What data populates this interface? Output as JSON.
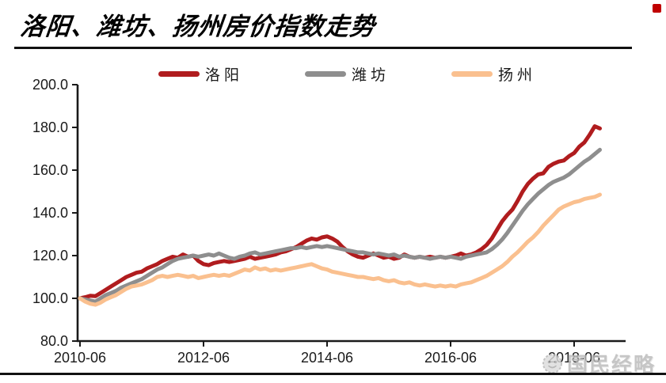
{
  "page": {
    "title": "洛阳、潍坊、扬州房价指数走势"
  },
  "watermark": {
    "text": "国民经略",
    "logo": "panda-face-icon"
  },
  "chart_data": {
    "type": "line",
    "title": "洛阳、潍坊、扬州房价指数走势",
    "xlabel": "",
    "ylabel": "",
    "ylim": [
      80,
      200
    ],
    "grid": false,
    "legend_position": "top",
    "axis_color": "#1a1a1a",
    "y_tick_labels": [
      "200.0",
      "180.0",
      "160.0",
      "140.0",
      "120.0",
      "100.0",
      "80.0"
    ],
    "x_tick_labels": [
      "2010-06",
      "2012-06",
      "2014-06",
      "2016-06",
      "2018-06"
    ],
    "x": [
      "2010-06",
      "2010-07",
      "2010-08",
      "2010-09",
      "2010-10",
      "2010-11",
      "2010-12",
      "2011-01",
      "2011-02",
      "2011-03",
      "2011-04",
      "2011-05",
      "2011-06",
      "2011-07",
      "2011-08",
      "2011-09",
      "2011-10",
      "2011-11",
      "2011-12",
      "2012-01",
      "2012-02",
      "2012-03",
      "2012-04",
      "2012-05",
      "2012-06",
      "2012-07",
      "2012-08",
      "2012-09",
      "2012-10",
      "2012-11",
      "2012-12",
      "2013-01",
      "2013-02",
      "2013-03",
      "2013-04",
      "2013-05",
      "2013-06",
      "2013-07",
      "2013-08",
      "2013-09",
      "2013-10",
      "2013-11",
      "2013-12",
      "2014-01",
      "2014-02",
      "2014-03",
      "2014-04",
      "2014-05",
      "2014-06",
      "2014-07",
      "2014-08",
      "2014-09",
      "2014-10",
      "2014-11",
      "2014-12",
      "2015-01",
      "2015-02",
      "2015-03",
      "2015-04",
      "2015-05",
      "2015-06",
      "2015-07",
      "2015-08",
      "2015-09",
      "2015-10",
      "2015-11",
      "2015-12",
      "2016-01",
      "2016-02",
      "2016-03",
      "2016-04",
      "2016-05",
      "2016-06",
      "2016-07",
      "2016-08",
      "2016-09",
      "2016-10",
      "2016-11",
      "2016-12",
      "2017-01",
      "2017-02",
      "2017-03",
      "2017-04",
      "2017-05",
      "2017-06",
      "2017-07",
      "2017-08",
      "2017-09",
      "2017-10",
      "2017-11",
      "2017-12",
      "2018-01",
      "2018-02",
      "2018-03",
      "2018-04",
      "2018-05",
      "2018-06",
      "2018-07",
      "2018-08",
      "2018-09",
      "2018-10",
      "2018-11"
    ],
    "series": [
      {
        "name": "洛阳",
        "color": "#b01c1e",
        "values": [
          100.0,
          100.5,
          101.2,
          101.0,
          102.5,
          104.0,
          105.5,
          107.0,
          108.5,
          110.0,
          111.0,
          112.0,
          112.5,
          114.0,
          115.0,
          116.0,
          117.5,
          118.5,
          119.5,
          119.0,
          120.5,
          119.5,
          120.0,
          117.5,
          116.0,
          115.5,
          116.5,
          117.0,
          117.5,
          117.0,
          117.5,
          118.0,
          118.5,
          119.5,
          118.5,
          119.0,
          119.5,
          120.0,
          120.5,
          121.5,
          122.0,
          123.0,
          124.0,
          125.5,
          127.0,
          128.0,
          127.5,
          128.5,
          129.0,
          128.0,
          126.5,
          124.0,
          122.0,
          120.5,
          119.5,
          119.0,
          120.0,
          121.0,
          120.0,
          119.0,
          119.5,
          118.5,
          119.0,
          120.5,
          119.5,
          119.0,
          119.5,
          119.0,
          119.5,
          119.0,
          119.5,
          119.0,
          119.5,
          120.0,
          121.0,
          120.0,
          120.5,
          121.5,
          123.0,
          125.0,
          128.0,
          132.0,
          136.0,
          139.0,
          141.5,
          145.5,
          150.0,
          153.5,
          156.0,
          158.0,
          158.5,
          161.5,
          163.0,
          164.0,
          164.5,
          166.5,
          168.0,
          171.0,
          173.0,
          176.5,
          180.5,
          179.5
        ]
      },
      {
        "name": "潍坊",
        "color": "#8e8e8e",
        "values": [
          100.0,
          99.5,
          99.0,
          98.5,
          100.0,
          101.5,
          102.5,
          103.5,
          105.0,
          106.0,
          107.0,
          108.0,
          109.0,
          110.5,
          112.0,
          113.5,
          114.5,
          116.0,
          117.5,
          118.5,
          119.0,
          119.5,
          120.0,
          119.5,
          120.0,
          120.5,
          120.0,
          121.0,
          120.0,
          119.0,
          118.5,
          119.5,
          120.0,
          121.0,
          121.5,
          120.5,
          121.0,
          121.5,
          122.0,
          122.5,
          123.0,
          123.5,
          123.5,
          124.0,
          123.5,
          124.0,
          124.5,
          124.0,
          124.5,
          124.0,
          123.5,
          123.0,
          122.5,
          122.0,
          121.5,
          121.5,
          121.0,
          120.5,
          121.0,
          120.5,
          120.0,
          120.5,
          119.5,
          120.0,
          119.5,
          119.0,
          119.5,
          119.0,
          118.5,
          119.0,
          119.5,
          119.0,
          119.5,
          119.0,
          118.5,
          119.5,
          120.0,
          120.5,
          121.0,
          121.5,
          123.0,
          125.0,
          127.5,
          130.5,
          134.0,
          137.5,
          141.0,
          144.0,
          146.5,
          149.0,
          151.0,
          153.0,
          154.5,
          155.5,
          156.5,
          158.0,
          160.0,
          162.0,
          164.0,
          165.5,
          167.5,
          169.5
        ]
      },
      {
        "name": "扬州",
        "color": "#fac08f",
        "values": [
          100.0,
          98.5,
          97.5,
          97.0,
          98.0,
          99.5,
          100.5,
          101.5,
          103.0,
          104.5,
          105.5,
          106.0,
          106.5,
          107.5,
          108.5,
          110.0,
          110.5,
          110.0,
          110.5,
          111.0,
          110.5,
          110.0,
          110.5,
          109.5,
          110.0,
          110.5,
          111.0,
          110.5,
          111.0,
          110.5,
          111.5,
          112.5,
          113.5,
          113.0,
          114.5,
          113.5,
          114.0,
          113.0,
          113.5,
          113.0,
          113.5,
          114.0,
          114.5,
          115.0,
          115.5,
          116.0,
          115.0,
          114.0,
          113.5,
          112.5,
          112.0,
          111.5,
          111.0,
          110.5,
          110.0,
          110.0,
          109.5,
          109.0,
          109.5,
          108.5,
          108.0,
          108.5,
          107.5,
          107.0,
          107.5,
          106.5,
          106.0,
          106.5,
          106.0,
          105.5,
          106.0,
          105.5,
          106.0,
          105.5,
          106.5,
          107.0,
          107.5,
          108.5,
          109.5,
          110.5,
          112.0,
          113.5,
          115.0,
          117.0,
          119.5,
          121.5,
          124.0,
          126.5,
          128.5,
          131.0,
          134.0,
          136.5,
          139.0,
          141.5,
          143.0,
          144.0,
          145.0,
          145.5,
          146.5,
          147.0,
          147.5,
          148.5
        ]
      }
    ]
  }
}
